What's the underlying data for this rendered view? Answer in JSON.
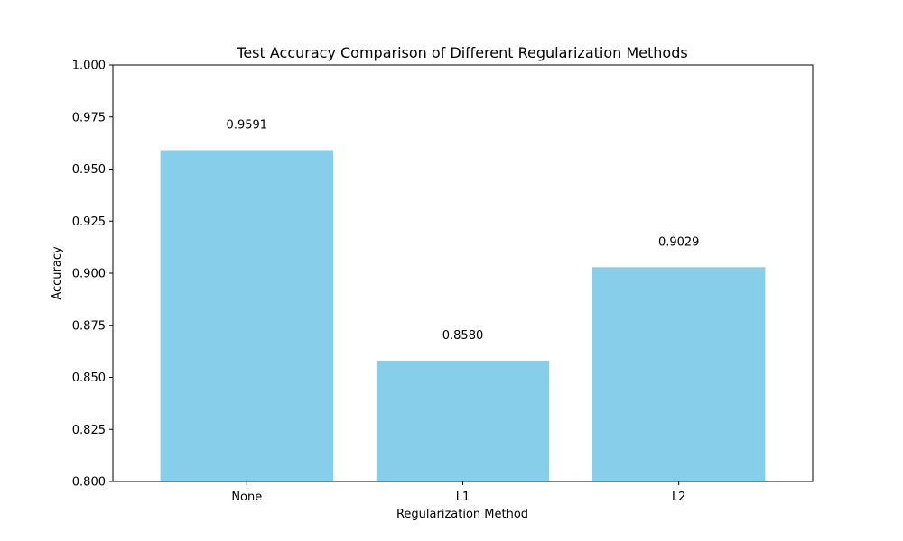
{
  "chart_data": {
    "type": "bar",
    "title": "Test Accuracy Comparison of Different Regularization Methods",
    "xlabel": "Regularization Method",
    "ylabel": "Accuracy",
    "categories": [
      "None",
      "L1",
      "L2"
    ],
    "values": [
      0.9591,
      0.858,
      0.9029
    ],
    "data_labels": [
      "0.9591",
      "0.8580",
      "0.9029"
    ],
    "ylim": [
      0.8,
      1.0
    ],
    "yticks": [
      0.8,
      0.825,
      0.85,
      0.875,
      0.9,
      0.925,
      0.95,
      0.975,
      1.0
    ],
    "ytick_labels": [
      "0.800",
      "0.825",
      "0.850",
      "0.875",
      "0.900",
      "0.925",
      "0.950",
      "0.975",
      "1.000"
    ],
    "bar_color": "#87ceeb",
    "grid": false,
    "legend": "none"
  }
}
